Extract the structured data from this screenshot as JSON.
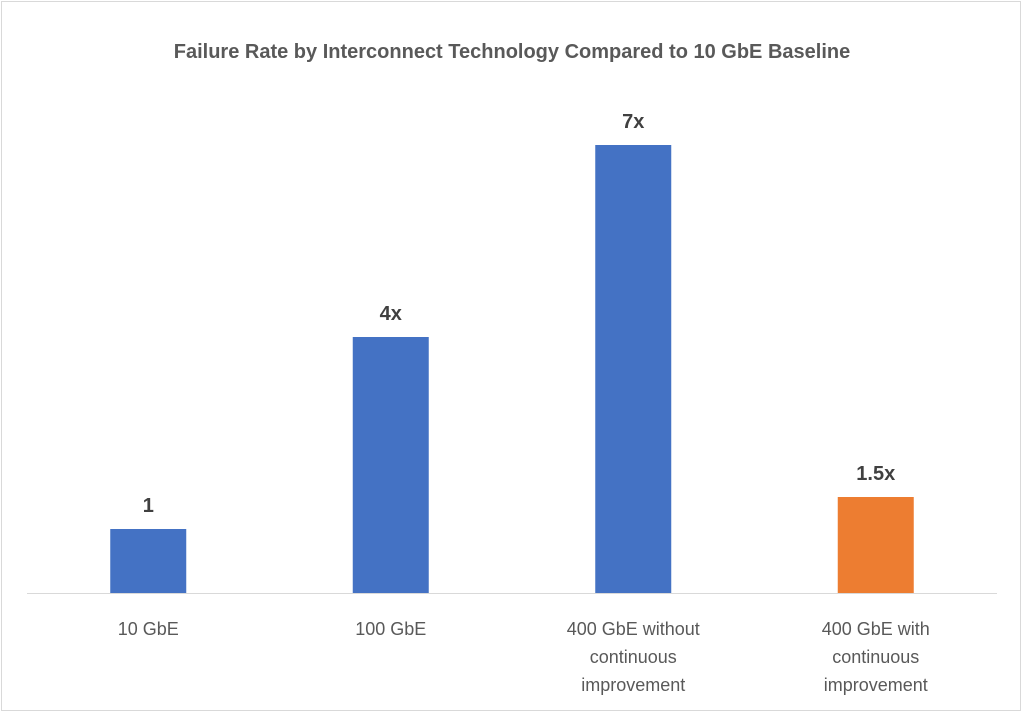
{
  "chart_data": {
    "type": "bar",
    "title": "Failure Rate by Interconnect Technology Compared to 10 GbE Baseline",
    "xlabel": "",
    "ylabel": "",
    "categories": [
      [
        "10 GbE"
      ],
      [
        "100 GbE"
      ],
      [
        "400 GbE without",
        "continuous",
        "improvement"
      ],
      [
        "400 GbE with",
        "continuous",
        "improvement"
      ]
    ],
    "values": [
      1,
      4,
      7,
      1.5
    ],
    "data_labels": [
      "1",
      "4x",
      "7x",
      "1.5x"
    ],
    "colors": [
      "#4472C4",
      "#4472C4",
      "#4472C4",
      "#ED7D31"
    ],
    "ylim": [
      0,
      9
    ],
    "grid": false,
    "legend": "none",
    "y_axis_visible": false
  }
}
